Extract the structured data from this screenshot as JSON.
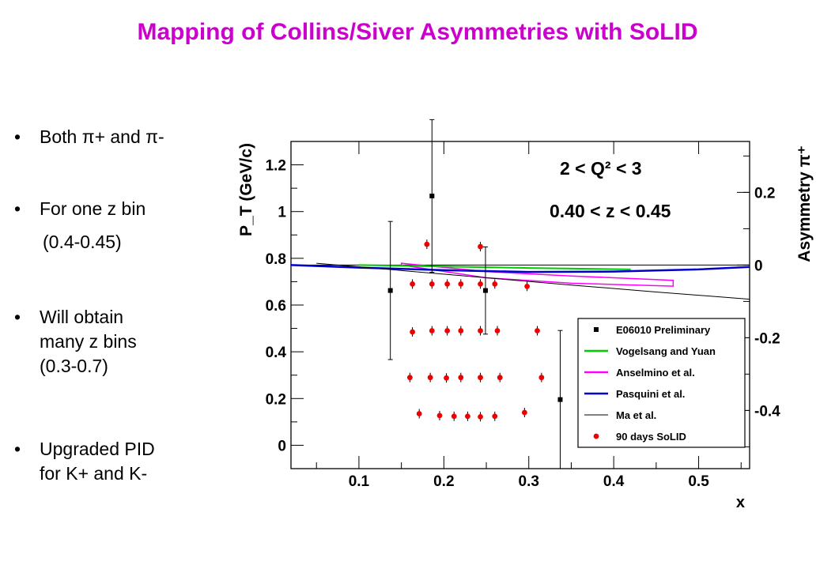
{
  "slide": {
    "title": "Mapping of Collins/Siver Asymmetries with SoLID",
    "title_color": "#cc00cc",
    "bullet_glyph": "•",
    "bullets": [
      {
        "text": "Both π+ and π-"
      },
      {
        "text": "For one z bin"
      },
      {
        "text": "(0.4-0.45)"
      },
      {
        "text": "Will obtain\nmany z bins\n(0.3-0.7)"
      },
      {
        "text": "Upgraded PID\nfor K+ and K-"
      }
    ]
  },
  "chart_data": {
    "type": "scatter",
    "xlabel": "x",
    "ylabel": "P_T (GeV/c)",
    "y2label": "Asymmetry π⁺",
    "xlim": [
      0.02,
      0.56
    ],
    "ylim": [
      -0.1,
      1.3
    ],
    "y2lim": [
      -0.56,
      0.34
    ],
    "x_ticks": [
      "0.1",
      "0.2",
      "0.3",
      "0.4",
      "0.5"
    ],
    "y_ticks": [
      "0",
      "0.2",
      "0.4",
      "0.6",
      "0.8",
      "1",
      "1.2"
    ],
    "y2_ticks": [
      "0.2",
      "0",
      "-0.2",
      "-0.4"
    ],
    "annotations": [
      "2 < Q² < 3",
      "0.40 < z < 0.45"
    ],
    "legend_position": "bottom-right",
    "legend": [
      {
        "label": "E06010 Preliminary",
        "marker": "square",
        "color": "#000000"
      },
      {
        "label": "Vogelsang and Yuan",
        "marker": "line",
        "color": "#00cc00"
      },
      {
        "label": "Anselmino et al.",
        "marker": "line",
        "color": "#ff00ff"
      },
      {
        "label": "Pasquini et al.",
        "marker": "line",
        "color": "#0000cc"
      },
      {
        "label": "Ma et al.",
        "marker": "line",
        "color": "#000000"
      },
      {
        "label": "90 days SoLID",
        "marker": "circle",
        "color": "#ee0000"
      }
    ],
    "series": [
      {
        "name": "E06010 Preliminary",
        "axis": "asymmetry",
        "points": [
          {
            "x": 0.137,
            "y": -0.07,
            "err": 0.19
          },
          {
            "x": 0.186,
            "y": 0.19,
            "err": 0.21
          },
          {
            "x": 0.249,
            "y": -0.07,
            "err": 0.12
          },
          {
            "x": 0.337,
            "y": -0.37,
            "err": 0.19
          }
        ]
      },
      {
        "name": "90 days SoLID",
        "axis": "pt",
        "points": [
          {
            "x": 0.163,
            "y": 0.69
          },
          {
            "x": 0.186,
            "y": 0.69
          },
          {
            "x": 0.204,
            "y": 0.69
          },
          {
            "x": 0.22,
            "y": 0.69
          },
          {
            "x": 0.243,
            "y": 0.69
          },
          {
            "x": 0.26,
            "y": 0.69
          },
          {
            "x": 0.298,
            "y": 0.68
          },
          {
            "x": 0.18,
            "y": 0.86
          },
          {
            "x": 0.243,
            "y": 0.85
          },
          {
            "x": 0.163,
            "y": 0.485
          },
          {
            "x": 0.186,
            "y": 0.49
          },
          {
            "x": 0.204,
            "y": 0.49
          },
          {
            "x": 0.22,
            "y": 0.49
          },
          {
            "x": 0.243,
            "y": 0.49
          },
          {
            "x": 0.263,
            "y": 0.49
          },
          {
            "x": 0.31,
            "y": 0.49
          },
          {
            "x": 0.16,
            "y": 0.29
          },
          {
            "x": 0.184,
            "y": 0.29
          },
          {
            "x": 0.203,
            "y": 0.288
          },
          {
            "x": 0.22,
            "y": 0.29
          },
          {
            "x": 0.243,
            "y": 0.29
          },
          {
            "x": 0.266,
            "y": 0.29
          },
          {
            "x": 0.315,
            "y": 0.29
          },
          {
            "x": 0.171,
            "y": 0.135
          },
          {
            "x": 0.195,
            "y": 0.127
          },
          {
            "x": 0.212,
            "y": 0.124
          },
          {
            "x": 0.228,
            "y": 0.124
          },
          {
            "x": 0.243,
            "y": 0.122
          },
          {
            "x": 0.26,
            "y": 0.124
          },
          {
            "x": 0.295,
            "y": 0.14
          }
        ]
      },
      {
        "name": "Vogelsang and Yuan",
        "axis": "asymmetry",
        "points": [
          {
            "x": 0.1,
            "y": 0.0
          },
          {
            "x": 0.2,
            "y": -0.004
          },
          {
            "x": 0.3,
            "y": -0.008
          },
          {
            "x": 0.42,
            "y": -0.012
          }
        ]
      },
      {
        "name": "Pasquini et al.",
        "axis": "asymmetry",
        "points": [
          {
            "x": 0.02,
            "y": 0.0
          },
          {
            "x": 0.1,
            "y": -0.007
          },
          {
            "x": 0.2,
            "y": -0.014
          },
          {
            "x": 0.3,
            "y": -0.019
          },
          {
            "x": 0.4,
            "y": -0.018
          },
          {
            "x": 0.5,
            "y": -0.012
          },
          {
            "x": 0.56,
            "y": -0.005
          }
        ]
      },
      {
        "name": "Ma et al.",
        "axis": "asymmetry",
        "points": [
          {
            "x": 0.05,
            "y": 0.005
          },
          {
            "x": 0.15,
            "y": -0.015
          },
          {
            "x": 0.25,
            "y": -0.035
          },
          {
            "x": 0.35,
            "y": -0.055
          },
          {
            "x": 0.45,
            "y": -0.074
          },
          {
            "x": 0.56,
            "y": -0.094
          }
        ]
      }
    ],
    "bands": [
      {
        "name": "Anselmino et al.",
        "axis": "asymmetry",
        "upper": [
          {
            "x": 0.15,
            "y": 0.005
          },
          {
            "x": 0.25,
            "y": -0.018
          },
          {
            "x": 0.35,
            "y": -0.03
          },
          {
            "x": 0.47,
            "y": -0.042
          }
        ],
        "lower": [
          {
            "x": 0.15,
            "y": 0.0
          },
          {
            "x": 0.25,
            "y": -0.035
          },
          {
            "x": 0.35,
            "y": -0.05
          },
          {
            "x": 0.47,
            "y": -0.058
          }
        ]
      }
    ]
  }
}
